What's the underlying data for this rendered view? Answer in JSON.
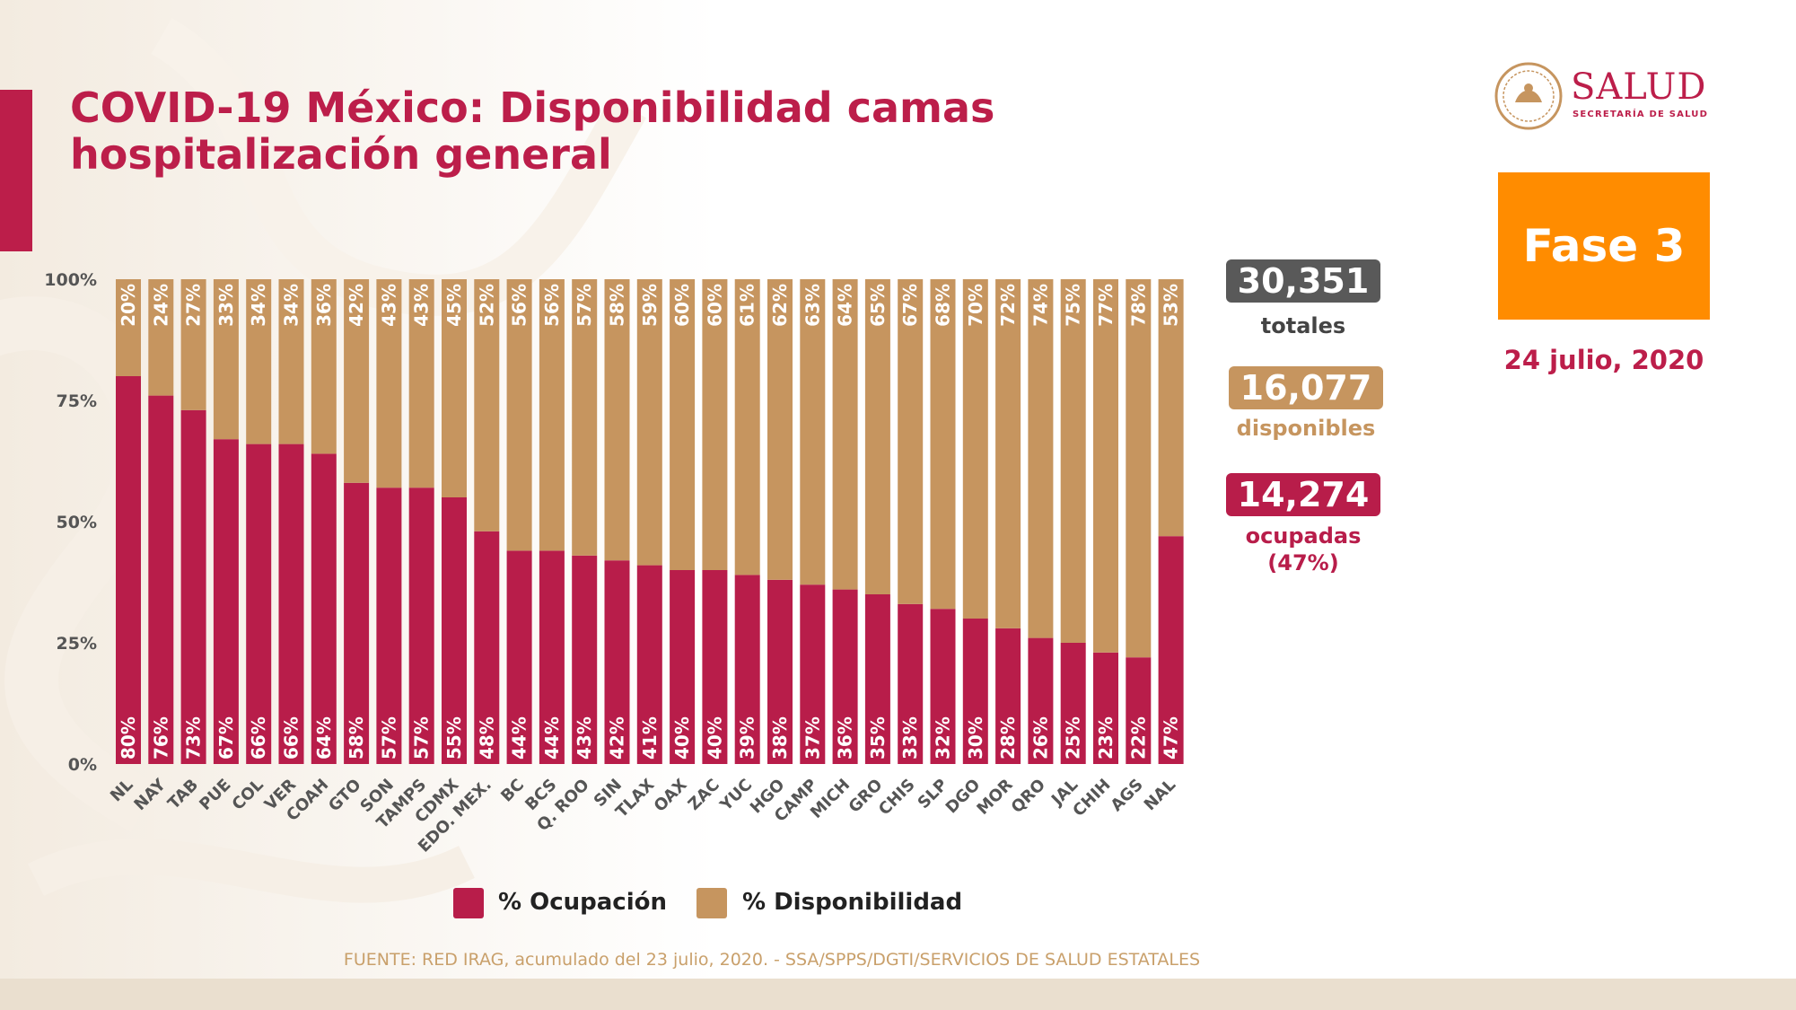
{
  "title": "COVID-19 México: Disponibilidad camas hospitalización general",
  "logo": {
    "word": "SALUD",
    "subtitle": "SECRETARÍA DE SALUD"
  },
  "phase": {
    "label": "Fase 3",
    "color": "#ff8c00"
  },
  "date": "24 julio, 2020",
  "stats": {
    "total_value": "30,351",
    "total_label": "totales",
    "available_value": "16,077",
    "available_label": "disponibles",
    "occupied_value": "14,274",
    "occupied_label": "ocupadas",
    "occupied_pct": "(47%)"
  },
  "legend": {
    "occupancy": "% Ocupación",
    "availability": "% Disponibilidad"
  },
  "source": "FUENTE: RED IRAG, acumulado del 23 julio, 2020. -  SSA/SPPS/DGTI/SERVICIOS DE SALUD ESTATALES",
  "colors": {
    "occupancy": "#b81d4a",
    "availability": "#c6955f",
    "accent": "#bc1e4a",
    "total_pill": "#595959"
  },
  "chart_data": {
    "type": "bar",
    "stacked": true,
    "percent_stacked": true,
    "categories": [
      "NL",
      "NAY",
      "TAB",
      "PUE",
      "COL",
      "VER",
      "COAH",
      "GTO",
      "SON",
      "TAMPS",
      "CDMX",
      "EDO. MEX.",
      "BC",
      "BCS",
      "Q. ROO",
      "SIN",
      "TLAX",
      "OAX",
      "ZAC",
      "YUC",
      "HGO",
      "CAMP",
      "MICH",
      "GRO",
      "CHIS",
      "SLP",
      "DGO",
      "MOR",
      "QRO",
      "JAL",
      "CHIH",
      "AGS",
      "NAL"
    ],
    "series": [
      {
        "name": "% Ocupación",
        "values": [
          80,
          76,
          73,
          67,
          66,
          66,
          64,
          58,
          57,
          57,
          55,
          48,
          44,
          44,
          43,
          42,
          41,
          40,
          40,
          39,
          38,
          37,
          36,
          35,
          33,
          32,
          30,
          28,
          26,
          25,
          23,
          22,
          47
        ]
      },
      {
        "name": "% Disponibilidad",
        "values": [
          20,
          24,
          27,
          33,
          34,
          34,
          36,
          42,
          43,
          43,
          45,
          52,
          56,
          56,
          57,
          58,
          59,
          60,
          60,
          61,
          62,
          63,
          64,
          65,
          67,
          68,
          70,
          72,
          74,
          75,
          77,
          78,
          53
        ]
      }
    ],
    "y_ticks": [
      "0%",
      "25%",
      "50%",
      "75%",
      "100%"
    ],
    "ylim": [
      0,
      100
    ],
    "grid": false,
    "legend_position": "bottom"
  }
}
